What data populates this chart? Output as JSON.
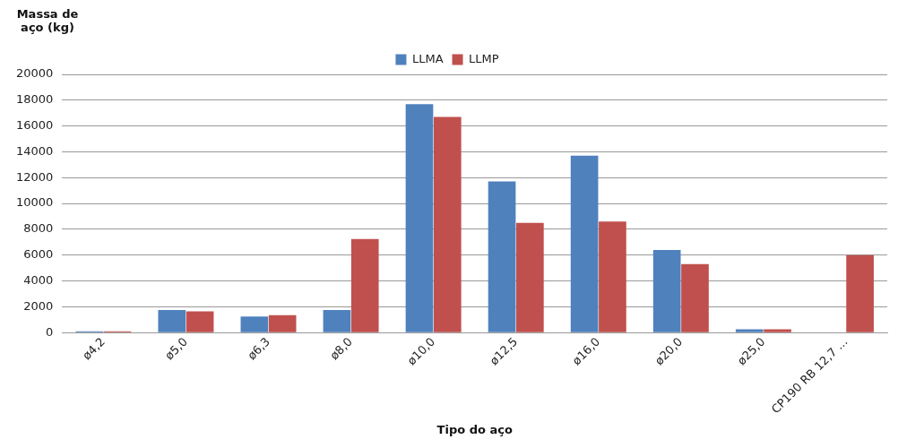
{
  "chart_data": {
    "type": "bar",
    "xlabel": "Tipo do aço",
    "ylabel": "Massa de aço (kg)",
    "categories": [
      "ø4,2",
      "ø5,0",
      "ø6,3",
      "ø8,0",
      "ø10,0",
      "ø12,5",
      "ø16,0",
      "ø20,0",
      "ø25,0",
      "CP190 RB 12,7 ..."
    ],
    "series": [
      {
        "name": "LLMA",
        "color": "#4f81bd",
        "values": [
          100,
          1750,
          1250,
          1750,
          17700,
          11700,
          13700,
          6400,
          250,
          0
        ]
      },
      {
        "name": "LLMP",
        "color": "#c0504d",
        "values": [
          100,
          1650,
          1350,
          7250,
          16700,
          8500,
          8600,
          5300,
          250,
          6000
        ]
      }
    ],
    "ylim": [
      0,
      20000
    ],
    "yticks": [
      0,
      2000,
      4000,
      6000,
      8000,
      10000,
      12000,
      14000,
      16000,
      18000,
      20000
    ],
    "grid": "y",
    "legend": "top"
  }
}
